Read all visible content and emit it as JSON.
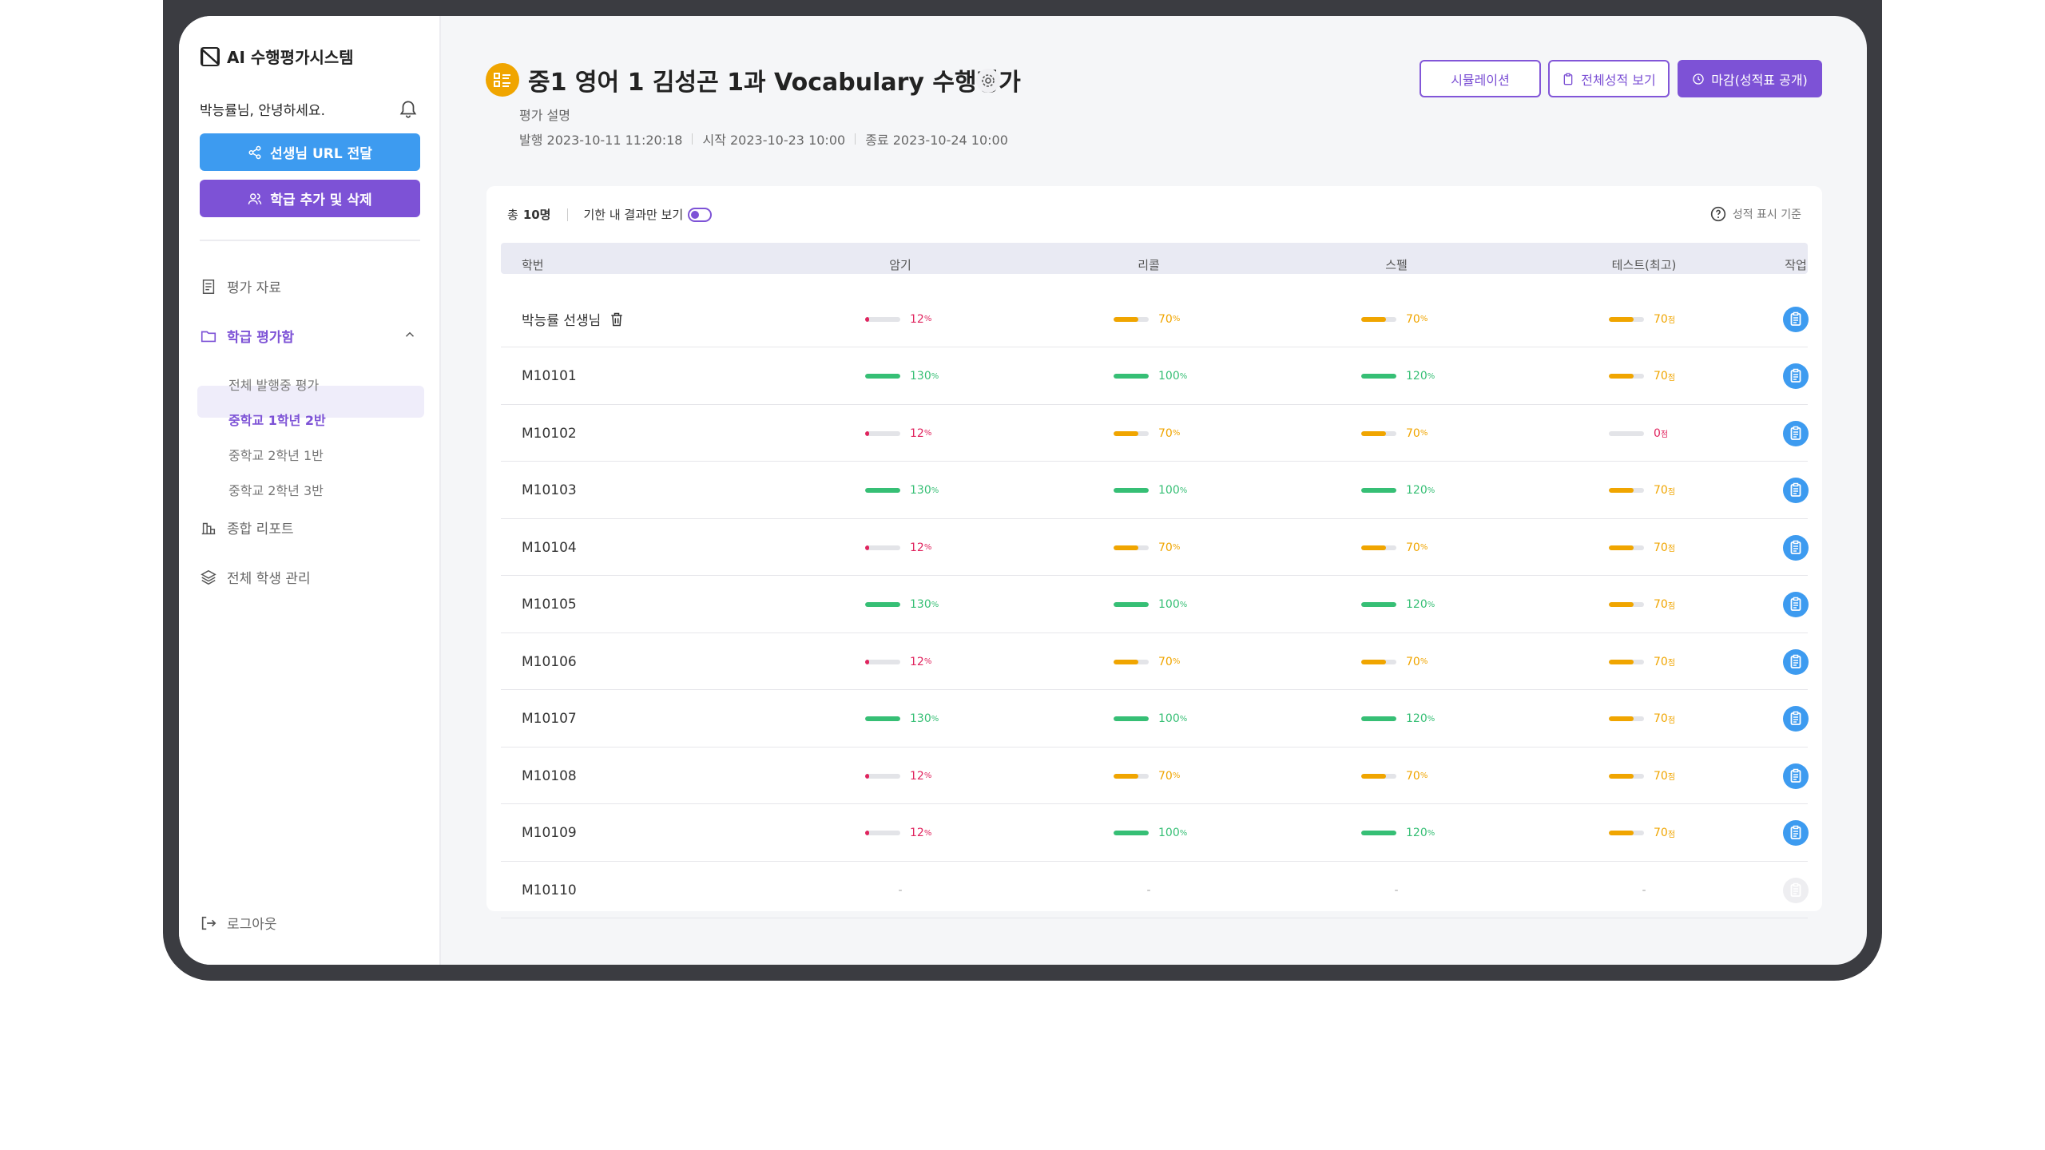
{
  "sidebar": {
    "logo": "AI 수행평가시스템",
    "greeting": "박능률님, 안녕하세요.",
    "buttons": [
      "선생님 URL 전달",
      "학급 추가 및 삭제"
    ],
    "menu": [
      {
        "label": "평가 자료"
      },
      {
        "label": "학급 평가함",
        "children": [
          "전체 발행중 평가",
          "중학교 1학년 2반",
          "중학교 2학년 1반",
          "중학교 2학년 3반"
        ]
      },
      {
        "label": "종합 리포트"
      },
      {
        "label": "전체 학생 관리"
      }
    ],
    "logout": "로그아웃"
  },
  "header": {
    "title": "중1 영어 1 김성곤 1과 Vocabulary 수행평가",
    "description": "평가 설명",
    "meta": [
      "발행 2023-10-11 11:20:18",
      "시작 2023-10-23 10:00",
      "종료 2023-10-24 10:00"
    ],
    "buttons": [
      "시뮬레이션",
      "전체성적 보기",
      "마감(성적표 공개)"
    ]
  },
  "table": {
    "total_label": "총",
    "total_count": "10명",
    "filter": "기한 내 결과만 보기",
    "criteria": "성적 표시 기준",
    "columns": [
      "학번",
      "암기",
      "리콜",
      "스펠",
      "테스트(최고)",
      "작업"
    ],
    "rows": [
      {
        "id": "박능률 선생님",
        "cells": [
          {
            "value": 12,
            "unit": "%"
          },
          {
            "value": 70,
            "unit": "%"
          },
          {
            "value": 70,
            "unit": "%"
          },
          {
            "value": 70,
            "unit": "점"
          }
        ]
      },
      {
        "id": "M10101",
        "cells": [
          {
            "value": 130,
            "unit": "%"
          },
          {
            "value": 100,
            "unit": "%"
          },
          {
            "value": 120,
            "unit": "%"
          },
          {
            "value": 70,
            "unit": "점"
          }
        ]
      },
      {
        "id": "M10102",
        "cells": [
          {
            "value": 12,
            "unit": "%"
          },
          {
            "value": 70,
            "unit": "%"
          },
          {
            "value": 70,
            "unit": "%"
          },
          {
            "value": 0,
            "unit": "점"
          }
        ]
      },
      {
        "id": "M10103",
        "cells": [
          {
            "value": 130,
            "unit": "%"
          },
          {
            "value": 100,
            "unit": "%"
          },
          {
            "value": 120,
            "unit": "%"
          },
          {
            "value": 70,
            "unit": "점"
          }
        ]
      },
      {
        "id": "M10104",
        "cells": [
          {
            "value": 12,
            "unit": "%"
          },
          {
            "value": 70,
            "unit": "%"
          },
          {
            "value": 70,
            "unit": "%"
          },
          {
            "value": 70,
            "unit": "점"
          }
        ]
      },
      {
        "id": "M10105",
        "cells": [
          {
            "value": 130,
            "unit": "%"
          },
          {
            "value": 100,
            "unit": "%"
          },
          {
            "value": 120,
            "unit": "%"
          },
          {
            "value": 70,
            "unit": "점"
          }
        ]
      },
      {
        "id": "M10106",
        "cells": [
          {
            "value": 12,
            "unit": "%"
          },
          {
            "value": 70,
            "unit": "%"
          },
          {
            "value": 70,
            "unit": "%"
          },
          {
            "value": 70,
            "unit": "점"
          }
        ]
      },
      {
        "id": "M10107",
        "cells": [
          {
            "value": 130,
            "unit": "%"
          },
          {
            "value": 100,
            "unit": "%"
          },
          {
            "value": 120,
            "unit": "%"
          },
          {
            "value": 70,
            "unit": "점"
          }
        ]
      },
      {
        "id": "M10108",
        "cells": [
          {
            "value": 12,
            "unit": "%"
          },
          {
            "value": 70,
            "unit": "%"
          },
          {
            "value": 70,
            "unit": "%"
          },
          {
            "value": 70,
            "unit": "점"
          }
        ]
      },
      {
        "id": "M10109",
        "cells": [
          {
            "value": 12,
            "unit": "%"
          },
          {
            "value": 100,
            "unit": "%"
          },
          {
            "value": 120,
            "unit": "%"
          },
          {
            "value": 70,
            "unit": "점"
          }
        ]
      },
      {
        "id": "M10110",
        "cells": [
          "-",
          "-",
          "-",
          "-"
        ]
      }
    ]
  }
}
